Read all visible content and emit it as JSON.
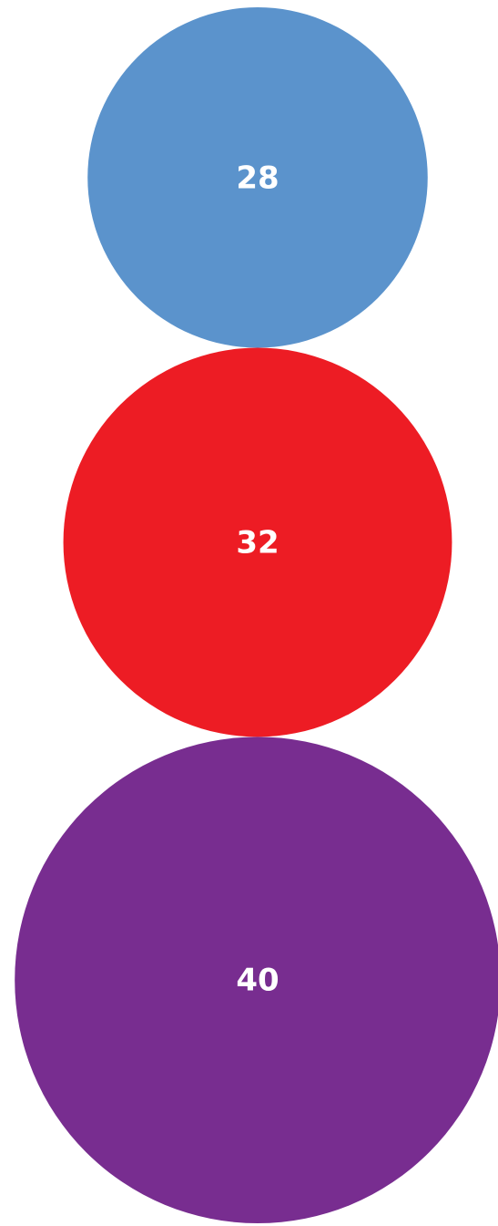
{
  "chart_data": {
    "type": "bubble",
    "values": [
      28,
      32,
      40
    ],
    "colors": [
      "#5b93cc",
      "#ed1c24",
      "#782d90"
    ]
  }
}
